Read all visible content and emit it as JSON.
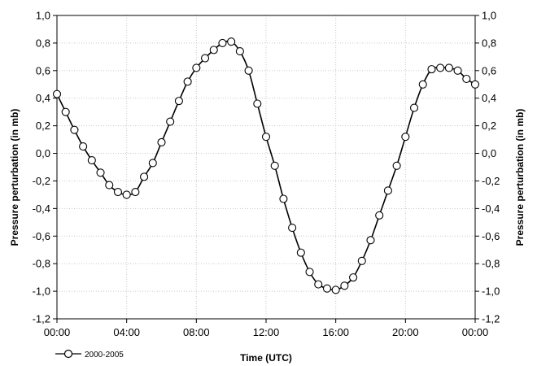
{
  "chart_data": {
    "type": "line",
    "xlabel": "Time (UTC)",
    "ylabel_left": "Pressure perturbation (in mb)",
    "ylabel_right": "Pressure perturbation (in mb)",
    "xlim": [
      0,
      24
    ],
    "ylim": [
      -1.2,
      1.0
    ],
    "x_ticks": [
      0,
      4,
      8,
      12,
      16,
      20,
      24
    ],
    "x_tick_labels": [
      "00:00",
      "04:00",
      "08:00",
      "12:00",
      "16:00",
      "20:00",
      "00:00"
    ],
    "y_ticks": [
      -1.2,
      -1.0,
      -0.8,
      -0.6,
      -0.4,
      -0.2,
      0.0,
      0.2,
      0.4,
      0.6,
      0.8,
      1.0
    ],
    "y_tick_labels": [
      "-1,2",
      "-1,0",
      "-0,8",
      "-0,6",
      "-0,4",
      "-0,2",
      "0,0",
      "0,2",
      "0,4",
      "0,6",
      "0,8",
      "1,0"
    ],
    "grid": true,
    "grid_style": "dotted",
    "legend": "bottom-left",
    "colors": {
      "line": "#000000",
      "marker_fill": "#ffffff",
      "grid": "#c8c8c8"
    },
    "series": [
      {
        "name": "2000-2005",
        "x": [
          0,
          0.5,
          1,
          1.5,
          2,
          2.5,
          3,
          3.5,
          4,
          4.5,
          5,
          5.5,
          6,
          6.5,
          7,
          7.5,
          8,
          8.5,
          9,
          9.5,
          10,
          10.5,
          11,
          11.5,
          12,
          12.5,
          13,
          13.5,
          14,
          14.5,
          15,
          15.5,
          16,
          16.5,
          17,
          17.5,
          18,
          18.5,
          19,
          19.5,
          20,
          20.5,
          21,
          21.5,
          22,
          22.5,
          23,
          23.5,
          24
        ],
        "y": [
          0.43,
          0.3,
          0.17,
          0.05,
          -0.05,
          -0.14,
          -0.23,
          -0.28,
          -0.3,
          -0.28,
          -0.17,
          -0.07,
          0.08,
          0.23,
          0.38,
          0.52,
          0.62,
          0.69,
          0.75,
          0.8,
          0.81,
          0.74,
          0.6,
          0.36,
          0.12,
          -0.09,
          -0.33,
          -0.54,
          -0.72,
          -0.86,
          -0.95,
          -0.98,
          -0.99,
          -0.96,
          -0.9,
          -0.78,
          -0.63,
          -0.45,
          -0.27,
          -0.09,
          0.12,
          0.33,
          0.5,
          0.61,
          0.62,
          0.62,
          0.6,
          0.54,
          0.5
        ]
      }
    ]
  }
}
